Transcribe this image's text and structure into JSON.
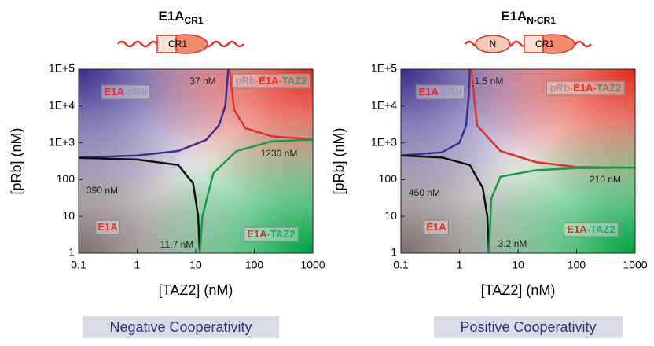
{
  "chart_data": [
    {
      "type": "line",
      "title": "E1A",
      "title_subscript": "CR1",
      "schematic_labels": [
        "CR1"
      ],
      "xlabel": "[TAZ2] (nM)",
      "ylabel": "[pRb] (nM)",
      "xscale": "log",
      "yscale": "log",
      "xlim": [
        0.1,
        1000
      ],
      "ylim": [
        1,
        100000
      ],
      "xticks": [
        0.1,
        1,
        10,
        100,
        1000
      ],
      "yticks": [
        1,
        10,
        100,
        {
          "value": 1000,
          "label": "1E+3"
        },
        {
          "value": 10000,
          "label": "1E+4"
        },
        {
          "value": 100000,
          "label": "1E+5"
        }
      ],
      "series": [
        {
          "color": "#3b2f8f",
          "x": [
            0.1,
            1,
            5,
            15,
            25,
            32,
            36
          ],
          "values": [
            400,
            450,
            600,
            1200,
            3000,
            10000,
            100000
          ]
        },
        {
          "color": "#e0302a",
          "x": [
            38,
            45,
            70,
            200,
            1000
          ],
          "values": [
            100000,
            8000,
            2500,
            1500,
            1250
          ]
        },
        {
          "color": "#111111",
          "x": [
            0.1,
            1,
            5,
            9,
            11,
            11.7
          ],
          "values": [
            390,
            350,
            250,
            80,
            10,
            1
          ]
        },
        {
          "color": "#1a9a4a",
          "x": [
            11.7,
            13,
            20,
            50,
            200,
            1000
          ],
          "values": [
            1,
            10,
            150,
            600,
            1100,
            1220
          ]
        }
      ],
      "region_labels": [
        {
          "parts": [
            "E1A",
            "-pRb"
          ],
          "colors": [
            "#e0302a",
            "#9a9aa8"
          ]
        },
        {
          "parts": [
            "pRb-",
            "E1A",
            "-TAZ2"
          ],
          "colors": [
            "#9a9aa8",
            "#e0302a",
            "#3a9a7a"
          ]
        },
        {
          "parts": [
            "E1A"
          ],
          "colors": [
            "#e0302a"
          ]
        },
        {
          "parts": [
            "E1A",
            "-TAZ2"
          ],
          "colors": [
            "#e0302a",
            "#3a9a7a"
          ]
        }
      ],
      "annotations": [
        "37 nM",
        "390 nM",
        "1230 nM",
        "11.7 nM"
      ],
      "caption": "Negative Cooperativity"
    },
    {
      "type": "line",
      "title": "E1A",
      "title_subscript": "N-CR1",
      "schematic_labels": [
        "N",
        "CR1"
      ],
      "xlabel": "[TAZ2] (nM)",
      "ylabel": "[pRb] (nM)",
      "xscale": "log",
      "yscale": "log",
      "xlim": [
        0.1,
        1000
      ],
      "ylim": [
        1,
        100000
      ],
      "xticks": [
        0.1,
        1,
        10,
        100,
        1000
      ],
      "yticks": [
        1,
        10,
        100,
        {
          "value": 1000,
          "label": "1E+3"
        },
        {
          "value": 10000,
          "label": "1E+4"
        },
        {
          "value": 100000,
          "label": "1E+5"
        }
      ],
      "series": [
        {
          "color": "#3b2f8f",
          "x": [
            0.1,
            0.5,
            1,
            1.3,
            1.45,
            1.5
          ],
          "values": [
            450,
            550,
            1000,
            3000,
            20000,
            100000
          ]
        },
        {
          "color": "#e0302a",
          "x": [
            1.6,
            2,
            5,
            20,
            100,
            1000
          ],
          "values": [
            100000,
            3000,
            600,
            300,
            220,
            210
          ]
        },
        {
          "color": "#111111",
          "x": [
            0.1,
            0.5,
            1.5,
            2.5,
            3,
            3.2
          ],
          "values": [
            450,
            400,
            250,
            60,
            10,
            1
          ]
        },
        {
          "color": "#1a9a4a",
          "x": [
            3.2,
            3.5,
            5,
            20,
            100,
            1000
          ],
          "values": [
            1,
            30,
            120,
            180,
            205,
            210
          ]
        }
      ],
      "region_labels": [
        {
          "parts": [
            "E1A",
            "-pRb"
          ],
          "colors": [
            "#e0302a",
            "#9a9aa8"
          ]
        },
        {
          "parts": [
            "pRb-",
            "E1A",
            "-TAZ2"
          ],
          "colors": [
            "#9a9aa8",
            "#e0302a",
            "#3a9a7a"
          ]
        },
        {
          "parts": [
            "E1A"
          ],
          "colors": [
            "#e0302a"
          ]
        },
        {
          "parts": [
            "E1A",
            "-TAZ2"
          ],
          "colors": [
            "#e0302a",
            "#3a9a7a"
          ]
        }
      ],
      "annotations": [
        "1.5 nM",
        "450 nM",
        "210 nM",
        "3.2 nM"
      ],
      "caption": "Positive Cooperativity"
    }
  ]
}
